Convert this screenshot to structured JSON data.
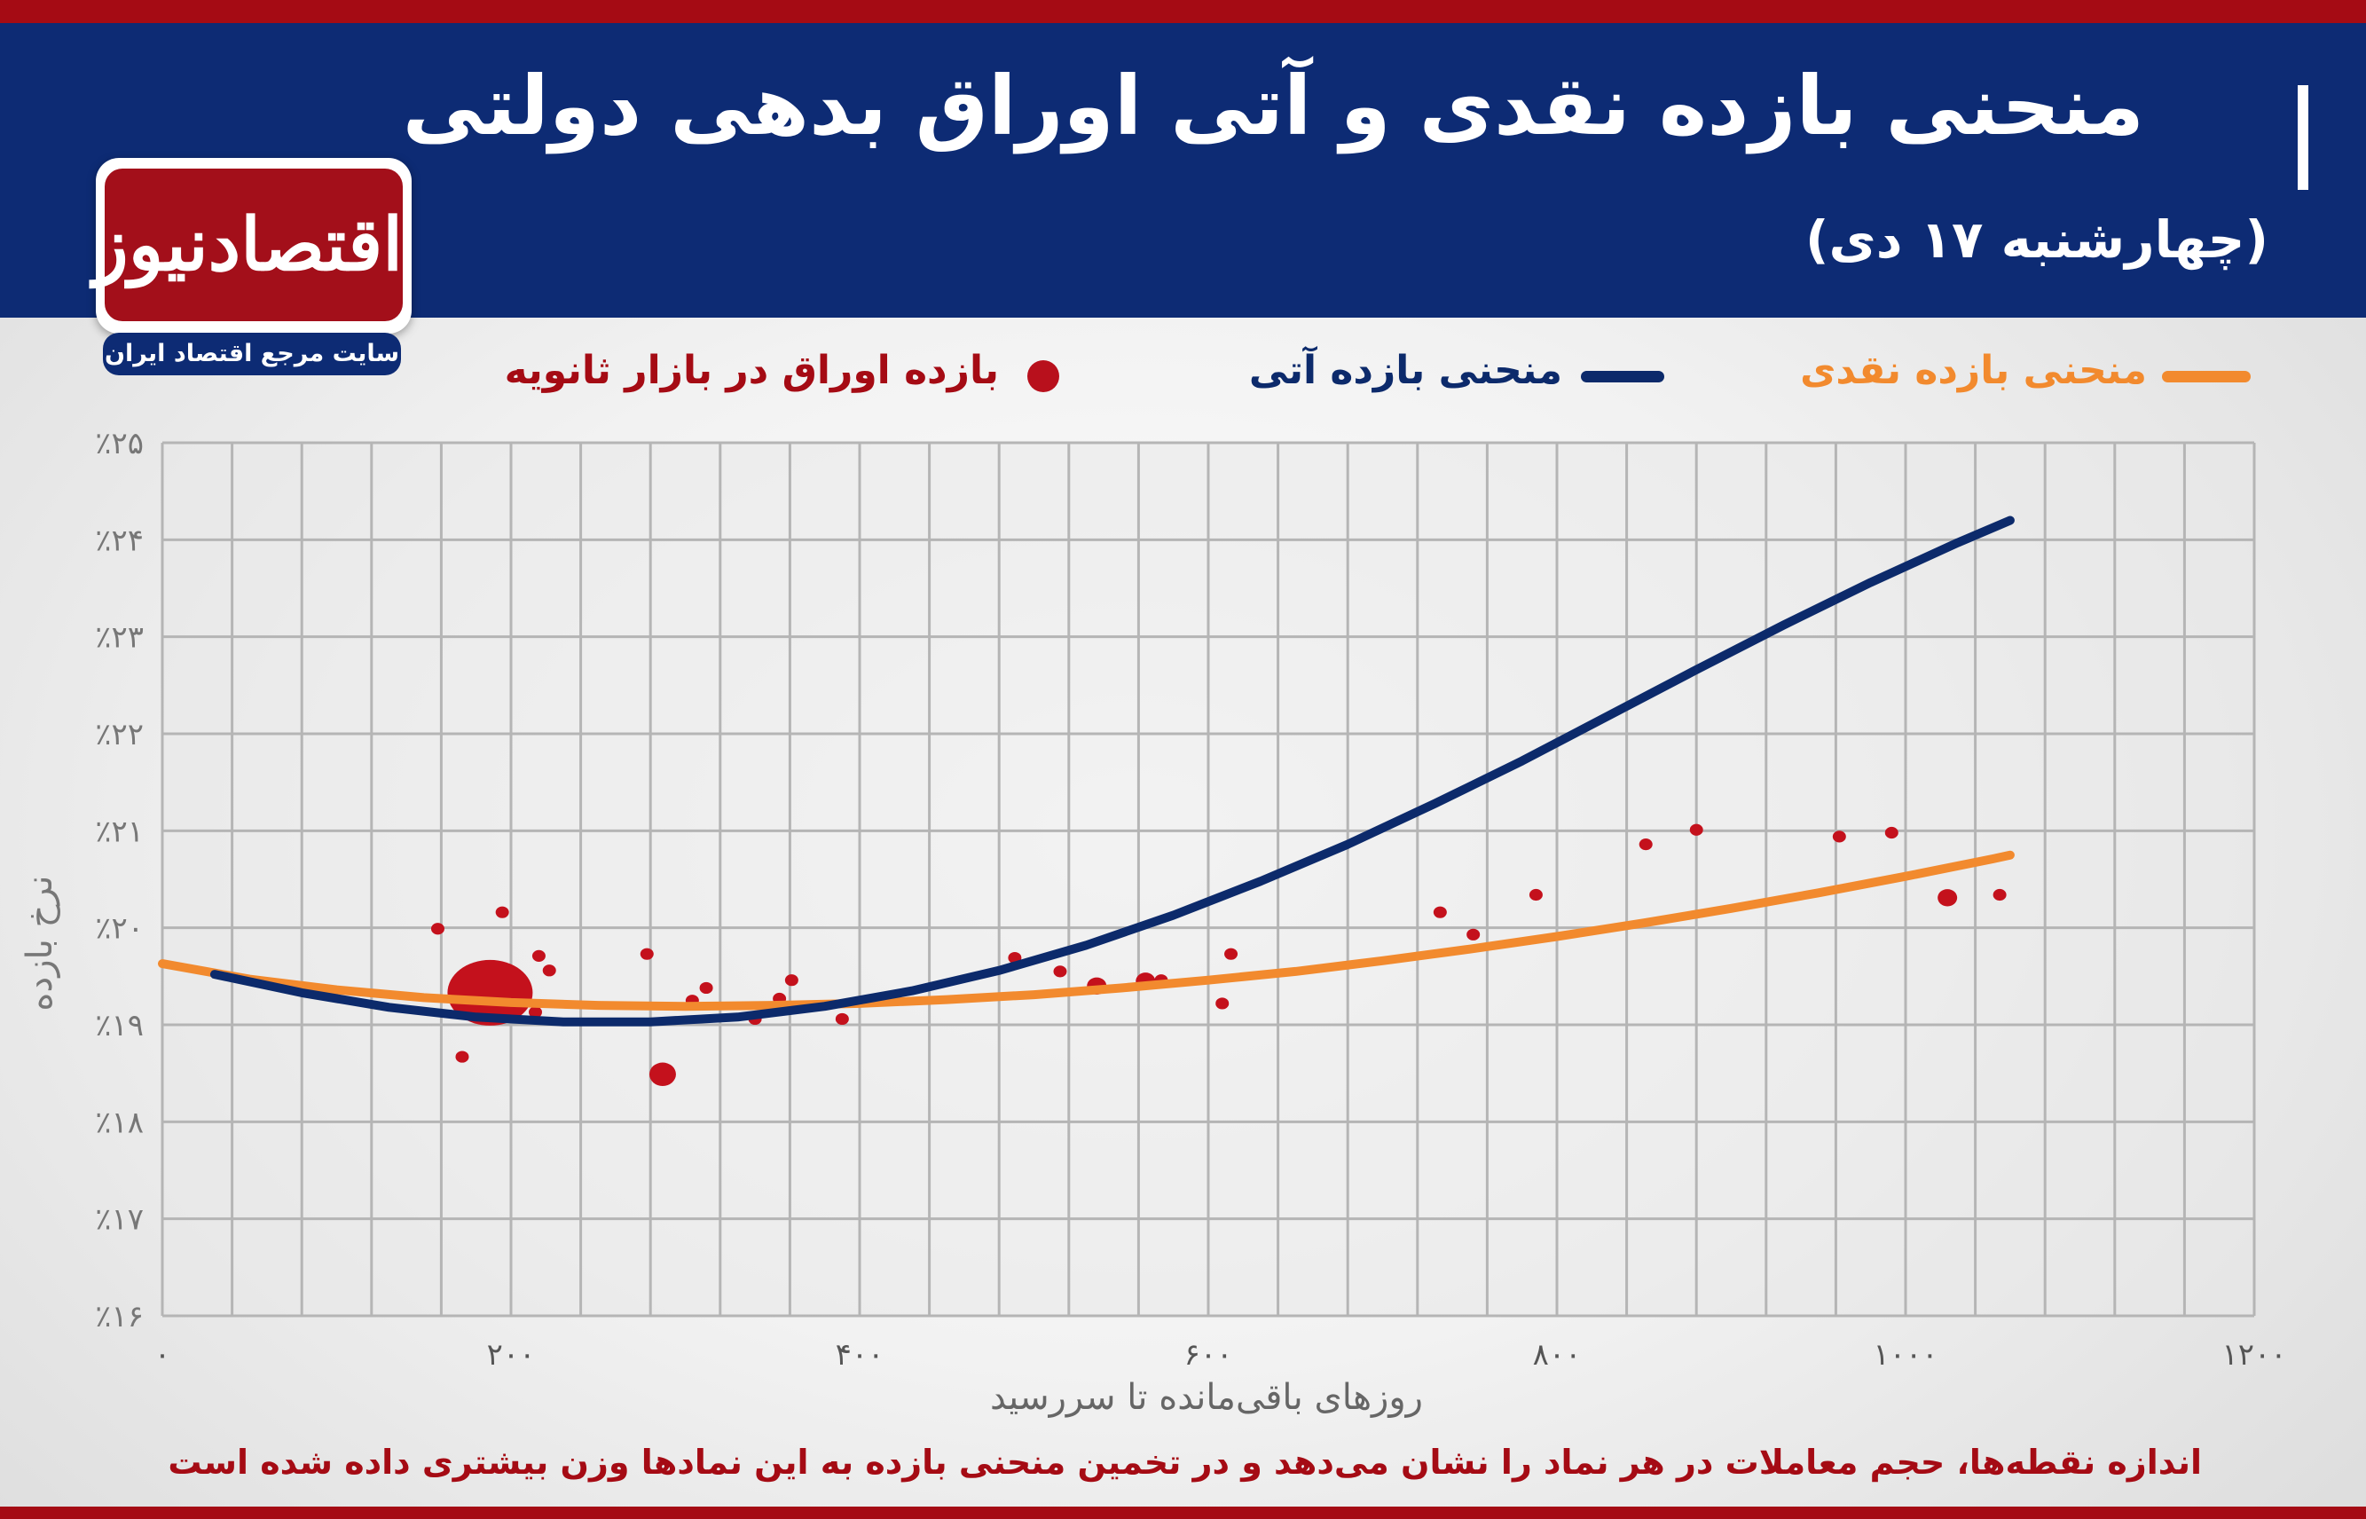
{
  "header": {
    "title": "منحنی بازده نقدی و آتی اوراق بدهی دولتی",
    "subtitle": "(چهارشنبه ۱۷ دی)"
  },
  "logo": {
    "text": "اقتصادنیوز",
    "tagline": "سایت مرجع اقتصاد ایران"
  },
  "legend": {
    "spot": "منحنی بازده نقدی",
    "futures": "منحنی بازده آتی",
    "points": "بازده اوراق در بازار ثانویه"
  },
  "footnote": "اندازه نقطه‌ها، حجم معاملات در هر نماد را نشان می‌دهد و در تخمین منحنی بازده به این نمادها وزن بیشتری داده شده است",
  "colors": {
    "brand_red": "#a50b14",
    "header_blue": "#0d2b74",
    "spot_orange": "#f28a2e",
    "futures_navy": "#0c2a6b",
    "points_red": "#c4111c"
  },
  "chart_data": {
    "type": "scatter",
    "xlabel": "روزهای باقی‌مانده تا سررسید",
    "ylabel": "نرخ بازده",
    "xlim": [
      0,
      1200
    ],
    "ylim": [
      16,
      25
    ],
    "grid": true,
    "legend_position": "top",
    "xticks": [
      {
        "v": 0,
        "label": "۰"
      },
      {
        "v": 200,
        "label": "۲۰۰"
      },
      {
        "v": 400,
        "label": "۴۰۰"
      },
      {
        "v": 600,
        "label": "۶۰۰"
      },
      {
        "v": 800,
        "label": "۸۰۰"
      },
      {
        "v": 1000,
        "label": "۱۰۰۰"
      },
      {
        "v": 1200,
        "label": "۱۲۰۰"
      }
    ],
    "yticks": [
      {
        "v": 16,
        "label": "٪۱۶"
      },
      {
        "v": 17,
        "label": "٪۱۷"
      },
      {
        "v": 18,
        "label": "٪۱۸"
      },
      {
        "v": 19,
        "label": "٪۱۹"
      },
      {
        "v": 20,
        "label": "٪۲۰"
      },
      {
        "v": 21,
        "label": "٪۲۱"
      },
      {
        "v": 22,
        "label": "٪۲۲"
      },
      {
        "v": 23,
        "label": "٪۲۳"
      },
      {
        "v": 24,
        "label": "٪۲۴"
      },
      {
        "v": 25,
        "label": "٪۲۵"
      }
    ],
    "series": [
      {
        "name": "منحنی بازده نقدی",
        "kind": "line",
        "color": "#f28a2e",
        "x": [
          0,
          50,
          100,
          150,
          200,
          250,
          300,
          350,
          400,
          450,
          500,
          550,
          600,
          650,
          700,
          750,
          800,
          850,
          900,
          950,
          1000,
          1050,
          1060
        ],
        "y": [
          19.63,
          19.47,
          19.36,
          19.28,
          19.23,
          19.2,
          19.19,
          19.2,
          19.22,
          19.26,
          19.31,
          19.38,
          19.46,
          19.55,
          19.66,
          19.78,
          19.91,
          20.05,
          20.2,
          20.36,
          20.53,
          20.71,
          20.75
        ]
      },
      {
        "name": "منحنی بازده آتی",
        "kind": "line",
        "color": "#0c2a6b",
        "x": [
          30,
          80,
          130,
          180,
          230,
          280,
          330,
          380,
          430,
          480,
          530,
          580,
          630,
          680,
          730,
          780,
          830,
          880,
          930,
          980,
          1030,
          1060
        ],
        "y": [
          19.52,
          19.33,
          19.18,
          19.08,
          19.03,
          19.03,
          19.08,
          19.19,
          19.35,
          19.56,
          19.82,
          20.13,
          20.48,
          20.86,
          21.28,
          21.72,
          22.19,
          22.66,
          23.12,
          23.56,
          23.97,
          24.2
        ]
      },
      {
        "name": "بازده اوراق در بازار ثانویه",
        "kind": "scatter",
        "color": "#c4111c",
        "points": [
          {
            "x": 158,
            "y": 19.99,
            "s": 2
          },
          {
            "x": 195,
            "y": 20.16,
            "s": 2
          },
          {
            "x": 172,
            "y": 18.67,
            "s": 2
          },
          {
            "x": 188,
            "y": 19.33,
            "s": 10
          },
          {
            "x": 216,
            "y": 19.71,
            "s": 2
          },
          {
            "x": 222,
            "y": 19.56,
            "s": 2
          },
          {
            "x": 214,
            "y": 19.13,
            "s": 2
          },
          {
            "x": 278,
            "y": 19.73,
            "s": 2
          },
          {
            "x": 287,
            "y": 18.49,
            "s": 4
          },
          {
            "x": 304,
            "y": 19.25,
            "s": 2
          },
          {
            "x": 312,
            "y": 19.38,
            "s": 2
          },
          {
            "x": 340,
            "y": 19.06,
            "s": 2
          },
          {
            "x": 354,
            "y": 19.27,
            "s": 2
          },
          {
            "x": 361,
            "y": 19.46,
            "s": 2
          },
          {
            "x": 390,
            "y": 19.06,
            "s": 2
          },
          {
            "x": 489,
            "y": 19.69,
            "s": 2
          },
          {
            "x": 515,
            "y": 19.55,
            "s": 2
          },
          {
            "x": 536,
            "y": 19.4,
            "s": 3
          },
          {
            "x": 564,
            "y": 19.45,
            "s": 3
          },
          {
            "x": 573,
            "y": 19.46,
            "s": 2
          },
          {
            "x": 608,
            "y": 19.22,
            "s": 2
          },
          {
            "x": 613,
            "y": 19.73,
            "s": 2
          },
          {
            "x": 733,
            "y": 20.16,
            "s": 2
          },
          {
            "x": 752,
            "y": 19.93,
            "s": 2
          },
          {
            "x": 788,
            "y": 20.34,
            "s": 2
          },
          {
            "x": 851,
            "y": 20.86,
            "s": 2
          },
          {
            "x": 880,
            "y": 21.01,
            "s": 2
          },
          {
            "x": 962,
            "y": 20.94,
            "s": 2
          },
          {
            "x": 992,
            "y": 20.98,
            "s": 2
          },
          {
            "x": 1024,
            "y": 20.31,
            "s": 3
          },
          {
            "x": 1054,
            "y": 20.34,
            "s": 2
          }
        ]
      }
    ]
  }
}
